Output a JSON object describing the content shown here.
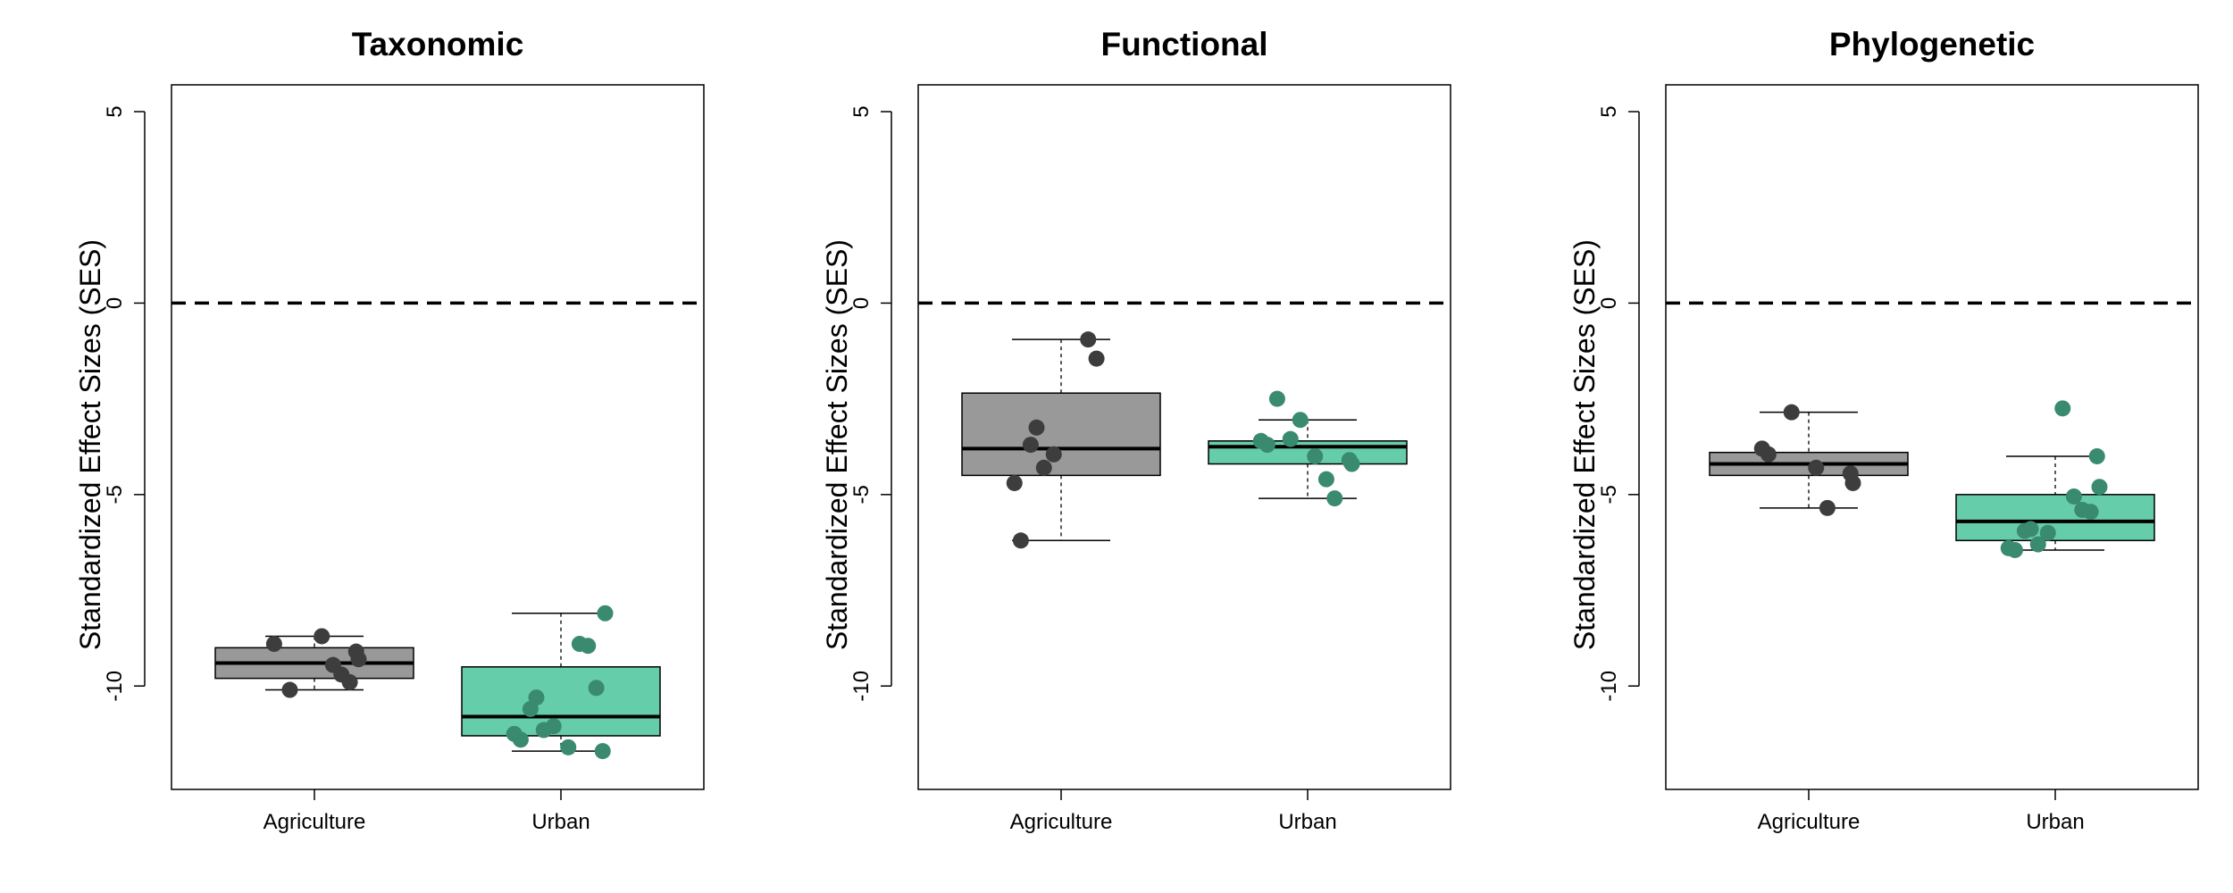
{
  "chart_data": [
    {
      "type": "box",
      "title": "Taxonomic",
      "ylabel": "Standardized Effect Sizes (SES)",
      "ylim": [
        -12.7,
        5.7
      ],
      "yticks": [
        5,
        0,
        -5,
        -10
      ],
      "reference_line": 0,
      "categories": [
        "Agriculture",
        "Urban"
      ],
      "boxes": [
        {
          "category": "Agriculture",
          "fill": "#999999",
          "point_color": "#3d3d3d",
          "min": -10.1,
          "q1": -9.8,
          "median": -9.4,
          "q3": -9.0,
          "max": -8.7,
          "points": [
            -8.9,
            -8.7,
            -9.1,
            -9.3,
            -9.45,
            -9.7,
            -9.9,
            -10.1
          ]
        },
        {
          "category": "Urban",
          "fill": "#66cdaa",
          "point_color": "#3a8a6f",
          "min": -11.7,
          "q1": -11.3,
          "median": -10.8,
          "q3": -9.5,
          "max": -8.1,
          "points": [
            -8.1,
            -8.9,
            -8.95,
            -10.05,
            -10.3,
            -10.6,
            -11.05,
            -11.15,
            -11.25,
            -11.4,
            -11.6,
            -11.7
          ]
        }
      ]
    },
    {
      "type": "box",
      "title": "Functional",
      "ylabel": "Standardized Effect Sizes (SES)",
      "ylim": [
        -12.7,
        5.7
      ],
      "yticks": [
        5,
        0,
        -5,
        -10
      ],
      "reference_line": 0,
      "categories": [
        "Agriculture",
        "Urban"
      ],
      "boxes": [
        {
          "category": "Agriculture",
          "fill": "#999999",
          "point_color": "#3d3d3d",
          "min": -6.2,
          "q1": -4.5,
          "median": -3.8,
          "q3": -2.35,
          "max": -0.95,
          "points": [
            -0.95,
            -1.45,
            -3.25,
            -3.7,
            -3.95,
            -4.3,
            -4.7,
            -6.2
          ]
        },
        {
          "category": "Urban",
          "fill": "#66cdaa",
          "point_color": "#3a8a6f",
          "min": -5.1,
          "q1": -4.2,
          "median": -3.75,
          "q3": -3.6,
          "max": -3.05,
          "points": [
            -2.5,
            -3.05,
            -3.55,
            -3.6,
            -3.7,
            -4.0,
            -4.1,
            -4.2,
            -4.6,
            -5.1
          ]
        }
      ]
    },
    {
      "type": "box",
      "title": "Phylogenetic",
      "ylabel": "Standardized Effect Sizes (SES)",
      "ylim": [
        -12.7,
        5.7
      ],
      "yticks": [
        5,
        0,
        -5,
        -10
      ],
      "reference_line": 0,
      "categories": [
        "Agriculture",
        "Urban"
      ],
      "boxes": [
        {
          "category": "Agriculture",
          "fill": "#999999",
          "point_color": "#3d3d3d",
          "min": -5.35,
          "q1": -4.5,
          "median": -4.2,
          "q3": -3.9,
          "max": -2.85,
          "points": [
            -2.85,
            -3.8,
            -3.95,
            -4.3,
            -4.45,
            -4.7,
            -5.35
          ]
        },
        {
          "category": "Urban",
          "fill": "#66cdaa",
          "point_color": "#3a8a6f",
          "min": -6.45,
          "q1": -6.2,
          "median": -5.7,
          "q3": -5.0,
          "max": -4.0,
          "points": [
            -2.75,
            -4.0,
            -4.8,
            -5.05,
            -5.4,
            -5.45,
            -5.9,
            -5.95,
            -6.0,
            -6.3,
            -6.4,
            -6.45
          ]
        }
      ]
    }
  ]
}
